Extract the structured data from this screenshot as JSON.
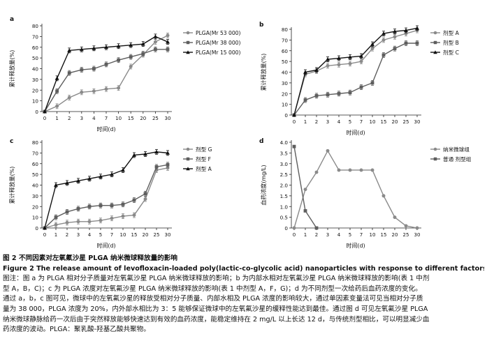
{
  "panels": [
    {
      "label": "a",
      "type": "line",
      "xlabel": "时间(d)",
      "ylabel": "累计释放量(%)",
      "x_categories": [
        "0",
        "1",
        "2",
        "3",
        "4",
        "7",
        "10",
        "15",
        "20",
        "25",
        "30"
      ],
      "ylim": [
        0,
        80
      ],
      "yticks": [
        "0",
        "10",
        "20",
        "30",
        "40",
        "50",
        "60",
        "70",
        "80"
      ],
      "legend_position": "right",
      "series": [
        {
          "name": "PLGA(Mr 53 000)",
          "marker": "circle",
          "values": [
            0,
            5,
            13,
            18,
            19,
            21,
            22,
            42,
            53,
            65,
            71
          ]
        },
        {
          "name": "PLGA(Mr 38 000)",
          "marker": "square",
          "values": [
            0,
            19,
            36,
            39,
            40,
            44,
            48,
            51,
            54,
            58,
            58
          ]
        },
        {
          "name": "PLGA(Mr 15 000)",
          "marker": "triangle",
          "values": [
            0,
            31,
            57,
            58,
            59,
            60,
            61,
            62,
            63,
            70,
            65
          ]
        }
      ]
    },
    {
      "label": "b",
      "type": "line",
      "xlabel": "时间(d)",
      "ylabel": "累计释放量(%)",
      "x_categories": [
        "0",
        "1",
        "2",
        "3",
        "4",
        "5",
        "7",
        "10",
        "15",
        "20",
        "25",
        "30"
      ],
      "ylim": [
        0,
        80
      ],
      "yticks": [
        "0",
        "10",
        "20",
        "30",
        "40",
        "50",
        "60",
        "70",
        "80"
      ],
      "legend_position": "right",
      "series": [
        {
          "name": "剂型 A",
          "marker": "circle",
          "values": [
            0,
            38,
            41,
            46,
            47,
            48,
            50,
            62,
            70,
            73,
            76,
            79
          ]
        },
        {
          "name": "剂型 B",
          "marker": "square",
          "values": [
            0,
            14,
            18,
            19,
            20,
            21,
            26,
            30,
            56,
            62,
            67,
            67
          ]
        },
        {
          "name": "剂型 C",
          "marker": "triangle",
          "values": [
            0,
            40,
            42,
            52,
            53,
            54,
            55,
            66,
            76,
            78,
            79,
            81
          ]
        }
      ]
    },
    {
      "label": "c",
      "type": "line",
      "xlabel": "时间(d)",
      "ylabel": "累计释放量(%)",
      "x_categories": [
        "0",
        "1",
        "2",
        "3",
        "4",
        "5",
        "7",
        "10",
        "15",
        "20",
        "25",
        "30"
      ],
      "ylim": [
        0,
        80
      ],
      "yticks": [
        "0",
        "10",
        "20",
        "30",
        "40",
        "50",
        "60",
        "70",
        "80"
      ],
      "legend_position": "right",
      "series": [
        {
          "name": "剂型 G",
          "marker": "circle",
          "values": [
            0,
            3,
            5,
            6,
            6,
            7,
            9,
            11,
            12,
            27,
            54,
            56
          ]
        },
        {
          "name": "剂型 F",
          "marker": "square",
          "values": [
            0,
            10,
            15,
            18,
            20,
            21,
            21,
            22,
            26,
            32,
            57,
            59
          ]
        },
        {
          "name": "剂型 A",
          "marker": "triangle",
          "values": [
            0,
            40,
            42,
            44,
            46,
            48,
            50,
            54,
            68,
            69,
            71,
            70
          ]
        }
      ]
    },
    {
      "label": "d",
      "type": "line",
      "xlabel": "时间(d)",
      "ylabel": "血药浓度(mg/L)",
      "x_categories": [
        "0",
        "1",
        "2",
        "3",
        "4",
        "5",
        "7",
        "10",
        "15",
        "20",
        "25",
        "30"
      ],
      "ylim": [
        0,
        4.0
      ],
      "yticks": [
        "0",
        "0.5",
        "1.0",
        "1.5",
        "2.0",
        "2.5",
        "3.0",
        "3.5",
        "4.0"
      ],
      "legend_position": "right",
      "series": [
        {
          "name": "纳米微球组",
          "marker": "circle",
          "values": [
            0,
            1.8,
            2.6,
            3.6,
            2.7,
            2.7,
            2.7,
            2.7,
            1.5,
            0.5,
            0.1,
            0
          ]
        },
        {
          "name": "普通 剂型组",
          "marker": "square",
          "values": [
            3.8,
            0.8,
            0,
            null,
            null,
            null,
            null,
            null,
            null,
            null,
            null,
            null
          ]
        }
      ]
    }
  ],
  "caption": {
    "title_cn": "图 2   不同因素对左氧氟沙星 PLGA 纳米微球释放量的影响",
    "title_en": "Figure 2   The release amount of levofloxacin-loaded poly(lactic-co-glycolic acid) nanoparticles with response to different factors",
    "lines": [
      "图注：图 a 为 PLGA 相对分子质量对左氧氟沙星 PLGA 纳米微球释放的影响；b 为内部水相对左氧氟沙星 PLGA 纳米微球释放的影响(表 1 中剂",
      "型  A，B，C)；c 为 PLGA 浓度对左氧氟沙星 PLGA 纳米微球释放的影响(表 1 中剂型 A，F，G)；d 为不同剂型一次给药后血药浓度的变化。",
      "通过 a，b，c 图可见，微球中的左氧氟沙星的释放受相对分子质量、内部水相及 PLGA 浓度的影响较大，通过单因素变量法可见当相对分子质",
      "量为 38 000，PLGA 浓度为 20%，内外部水相比为 3：5 能够保证微球中的左氧氟沙星的缓释性能达到最佳。通过图 d 可见左氧氟沙星 PLGA",
      "纳米微球静脉给药一次后由于突然释放能够快速达到有效的血药浓度，能稳定维持在 2 mg/L 以上长达 12 d，与传统剂型相比，可以明显减少血",
      "药浓度的波动。PLGA：聚乳酸-羟基乙酸共聚物。"
    ]
  }
}
